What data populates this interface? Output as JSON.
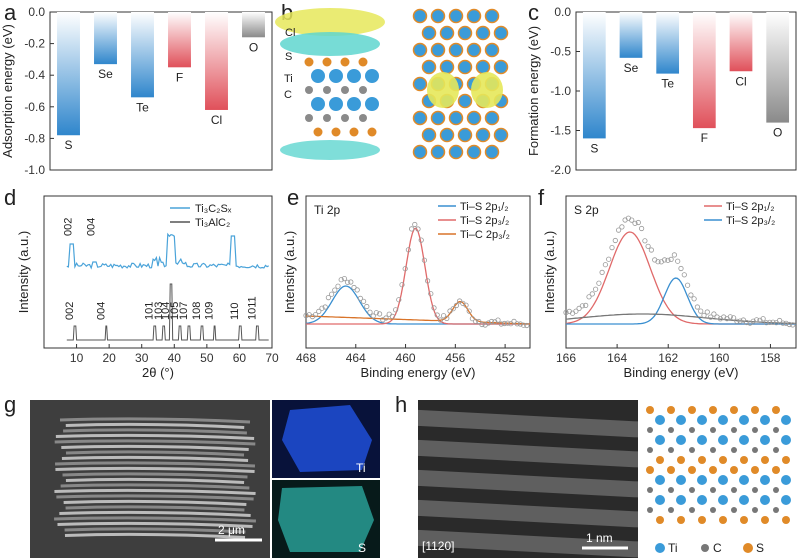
{
  "panels": {
    "a": "a",
    "b": "b",
    "c": "c",
    "d": "d",
    "e": "e",
    "f": "f",
    "g": "g",
    "h": "h"
  },
  "chart_data": [
    {
      "id": "a",
      "type": "bar",
      "ylabel": "Adsorption energy (eV)",
      "ylim": [
        -1.0,
        0.0
      ],
      "yticks": [
        "0.0",
        "-0.2",
        "-0.4",
        "-0.6",
        "-0.8",
        "-1.0"
      ],
      "categories": [
        "S",
        "Se",
        "Te",
        "F",
        "Cl",
        "O"
      ],
      "values": [
        -0.78,
        -0.33,
        -0.54,
        -0.35,
        -0.62,
        -0.16
      ],
      "colors": [
        "#3a8fd0",
        "#3a8fd0",
        "#3a8fd0",
        "#e0505a",
        "#e0505a",
        "#888888"
      ]
    },
    {
      "id": "c",
      "type": "bar",
      "ylabel": "Formation energy (eV)",
      "ylim": [
        -2.0,
        0.0
      ],
      "yticks": [
        "0.0",
        "-0.5",
        "-1.0",
        "-1.5",
        "-2.0"
      ],
      "categories": [
        "S",
        "Se",
        "Te",
        "F",
        "Cl",
        "O"
      ],
      "values": [
        -1.6,
        -0.58,
        -0.78,
        -1.47,
        -0.75,
        -1.4
      ],
      "colors": [
        "#3a8fd0",
        "#3a8fd0",
        "#3a8fd0",
        "#e0505a",
        "#e0505a",
        "#888888"
      ]
    },
    {
      "id": "d",
      "type": "line",
      "xlabel": "2θ (°)",
      "ylabel": "Intensity (a.u.)",
      "xlim": [
        0,
        70
      ],
      "xticks": [
        "10",
        "20",
        "30",
        "40",
        "50",
        "60",
        "70"
      ],
      "legend": [
        "Ti₃C₂Sₓ",
        "Ti₃AlC₂"
      ],
      "top_labels": [
        {
          "x": 8.5,
          "t": "002"
        },
        {
          "x": 15.5,
          "t": "004"
        }
      ],
      "bottom_labels": [
        {
          "x": 9.5,
          "t": "002"
        },
        {
          "x": 19.2,
          "t": "004"
        },
        {
          "x": 34,
          "t": "101"
        },
        {
          "x": 36.8,
          "t": "103"
        },
        {
          "x": 39,
          "t": "104"
        },
        {
          "x": 41.8,
          "t": "105"
        },
        {
          "x": 44.5,
          "t": "107"
        },
        {
          "x": 48.5,
          "t": "108"
        },
        {
          "x": 52.4,
          "t": "109"
        },
        {
          "x": 60.2,
          "t": "110"
        },
        {
          "x": 65.5,
          "t": "1011"
        }
      ]
    },
    {
      "id": "e",
      "type": "line",
      "title": "Ti 2p",
      "xlabel": "Binding energy (eV)",
      "ylabel": "Intensity (a.u.)",
      "xlim": [
        468,
        450
      ],
      "xticks": [
        "468",
        "464",
        "460",
        "456",
        "452"
      ],
      "legend": [
        "Ti–S 2p₁/₂",
        "Ti–S 2p₃/₂",
        "Ti–C 2p₃/₂"
      ],
      "legend_colors": [
        "#3a8fd0",
        "#e06a6a",
        "#d9742a"
      ]
    },
    {
      "id": "f",
      "type": "line",
      "title": "S 2p",
      "xlabel": "Binding energy (eV)",
      "ylabel": "Intensity (a.u.)",
      "xlim": [
        166,
        157
      ],
      "xticks": [
        "166",
        "164",
        "162",
        "160",
        "158"
      ],
      "legend": [
        "Ti–S 2p₁/₂",
        "Ti–S 2p₃/₂"
      ],
      "legend_colors": [
        "#e06a6a",
        "#3a8fd0"
      ]
    }
  ],
  "panel_b": {
    "labels": [
      "Cl",
      "S",
      "Ti",
      "C"
    ]
  },
  "panel_g": {
    "scale": "2 μm",
    "eds": [
      "Ti",
      "S"
    ]
  },
  "panel_h": {
    "zone": "[1120]",
    "scale": "1 nm",
    "legend": [
      "Ti",
      "C",
      "S"
    ]
  }
}
